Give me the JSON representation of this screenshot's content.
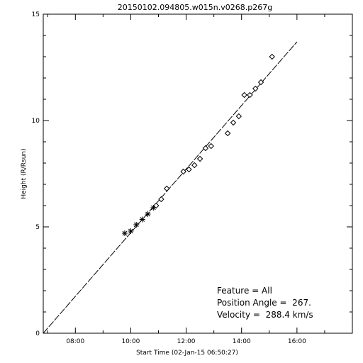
{
  "chart_data": {
    "type": "scatter",
    "title": "20150102.094805.w015n.v0268.p267g",
    "xlabel": "Start Time (02-Jan-15 06:50:27)",
    "ylabel": "Height (R/Rsun)",
    "x_range": [
      "06:50:27",
      "18:00"
    ],
    "ylim": [
      0,
      15
    ],
    "x_ticks": [
      "08:00",
      "10:00",
      "12:00",
      "14:00",
      "16:00"
    ],
    "y_ticks": [
      0,
      5,
      10,
      15
    ],
    "grid": false,
    "series": [
      {
        "marker": "asterisk",
        "points": [
          {
            "x": "09:47",
            "y": 4.7
          },
          {
            "x": "10:00",
            "y": 4.8
          },
          {
            "x": "10:12",
            "y": 5.1
          },
          {
            "x": "10:25",
            "y": 5.35
          },
          {
            "x": "10:37",
            "y": 5.6
          },
          {
            "x": "10:49",
            "y": 5.9
          }
        ]
      },
      {
        "marker": "diamond",
        "points": [
          {
            "x": "10:55",
            "y": 6.0
          },
          {
            "x": "11:06",
            "y": 6.3
          },
          {
            "x": "11:18",
            "y": 6.8
          },
          {
            "x": "11:54",
            "y": 7.6
          },
          {
            "x": "12:06",
            "y": 7.7
          },
          {
            "x": "12:18",
            "y": 7.9
          },
          {
            "x": "12:30",
            "y": 8.2
          },
          {
            "x": "12:42",
            "y": 8.7
          },
          {
            "x": "12:54",
            "y": 8.8
          },
          {
            "x": "13:30",
            "y": 9.4
          },
          {
            "x": "13:42",
            "y": 9.9
          },
          {
            "x": "13:54",
            "y": 10.2
          },
          {
            "x": "14:06",
            "y": 11.2
          },
          {
            "x": "14:18",
            "y": 11.2
          },
          {
            "x": "14:30",
            "y": 11.5
          },
          {
            "x": "14:42",
            "y": 11.8
          },
          {
            "x": "15:06",
            "y": 13.0
          }
        ]
      }
    ],
    "fit_line": {
      "style": "dashed",
      "start": {
        "x": "06:50:27",
        "y": 0
      },
      "end": {
        "x": "16:00",
        "y": 13.7
      }
    },
    "annotations": [
      "Feature = All",
      "Position Angle =  267.",
      "Velocity =  288.4 km/s"
    ]
  }
}
